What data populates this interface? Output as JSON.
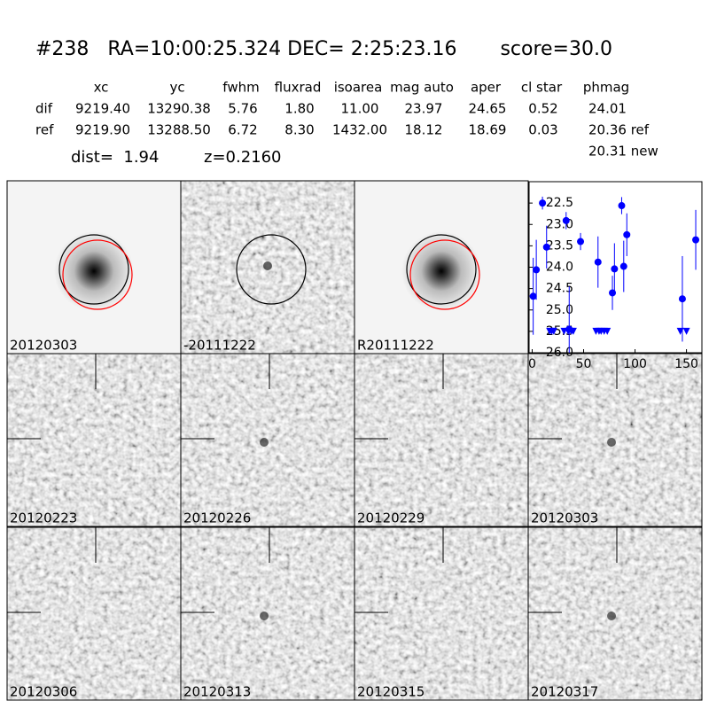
{
  "header": {
    "title": "#238   RA=10:00:25.324 DEC= 2:25:23.16       score=30.0"
  },
  "table": {
    "columns": [
      "xc",
      "yc",
      "fwhm",
      "fluxrad",
      "isoarea",
      "mag auto",
      "aper",
      "cl star",
      "phmag"
    ],
    "rows": [
      [
        "dif",
        "9219.40",
        "13290.38",
        "5.76",
        "1.80",
        "11.00",
        "23.97",
        "24.65",
        "0.52",
        "24.01"
      ],
      [
        "ref",
        "9219.90",
        "13288.50",
        "6.72",
        "8.30",
        "1432.00",
        "18.12",
        "18.69",
        "0.03",
        "20.36 ref"
      ]
    ],
    "extra": "20.31 new"
  },
  "dist": "dist=  1.94",
  "z": "z=0.2160",
  "panels": [
    {
      "label": "20120303"
    },
    {
      "label": "-20111222"
    },
    {
      "label": "R20111222"
    },
    {
      "label": "20120223"
    },
    {
      "label": "20120226"
    },
    {
      "label": "20120229"
    },
    {
      "label": "20120303",
      "color": "#ff0000"
    },
    {
      "label": "20120306"
    },
    {
      "label": "20120313"
    },
    {
      "label": "20120315"
    },
    {
      "label": "20120317"
    }
  ],
  "chart_data": {
    "type": "scatter",
    "xlim": [
      -3,
      165
    ],
    "xticks": [
      0,
      50,
      100,
      150
    ],
    "ylim": [
      26.0,
      22.0
    ],
    "yticks": [
      22.5,
      {
        "value": 23,
        "label": "23.0"
      },
      23.5,
      {
        "value": 24,
        "label": "24.0"
      },
      24.5,
      {
        "value": 25,
        "label": "25.0"
      },
      25.5,
      {
        "value": 26,
        "label": "26.0"
      }
    ],
    "series": [
      {
        "color": "#0000ff",
        "marker": "circle",
        "x": [
          1,
          4,
          10,
          14,
          33,
          36,
          47,
          64,
          78,
          80,
          87,
          89,
          92,
          146,
          159
        ],
        "values": [
          24.68,
          24.06,
          22.5,
          23.53,
          22.91,
          25.45,
          23.4,
          23.88,
          24.6,
          24.04,
          22.56,
          23.98,
          23.24,
          24.74,
          23.36
        ],
        "errors": [
          0.9,
          0.7,
          0.15,
          0.5,
          0.2,
          1.0,
          0.2,
          0.6,
          0.4,
          0.6,
          0.2,
          0.6,
          0.5,
          1.0,
          0.7
        ]
      },
      {
        "color": "#0000ff",
        "marker": "triangle-down",
        "x": [
          17,
          19,
          21,
          31,
          35,
          38,
          40,
          62,
          65,
          67,
          70,
          73,
          144,
          150
        ],
        "values": [
          25.5,
          25.5,
          25.5,
          25.5,
          25.5,
          25.5,
          25.5,
          25.5,
          25.5,
          25.5,
          25.5,
          25.5,
          25.5,
          25.5
        ]
      }
    ]
  }
}
